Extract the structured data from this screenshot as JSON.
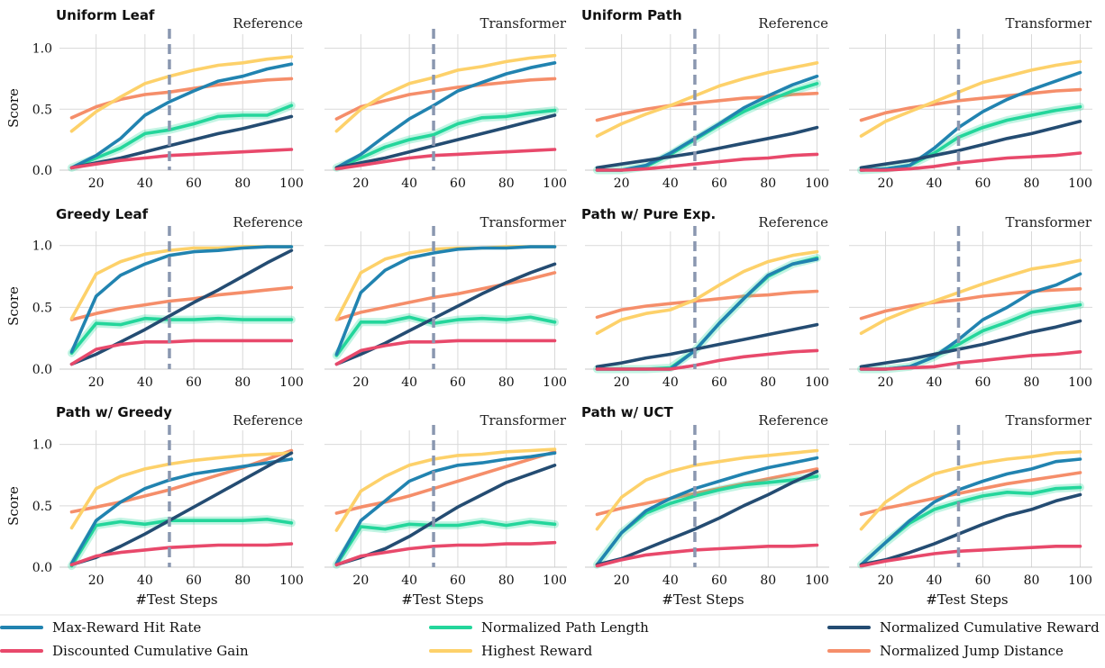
{
  "chart_data": {
    "type": "line",
    "x": [
      10,
      20,
      30,
      40,
      50,
      60,
      70,
      80,
      90,
      100
    ],
    "x_ticks": [
      "20",
      "40",
      "60",
      "80",
      "100"
    ],
    "y_ticks": [
      "0.0",
      "0.5",
      "1.0"
    ],
    "xlabel": "#Test Steps",
    "ylabel": "Score",
    "ylim": [
      0,
      1.1
    ],
    "xlim": [
      5,
      105
    ],
    "vline_x": 50,
    "grid": true,
    "legend_position": "bottom",
    "series_styles": [
      {
        "key": "hit",
        "name": "Max-Reward Hit Rate",
        "color": "#2183b0"
      },
      {
        "key": "dcg",
        "name": "Discounted Cumulative Gain",
        "color": "#e8496b"
      },
      {
        "key": "path",
        "name": "Normalized Path Length",
        "color": "#24d69b"
      },
      {
        "key": "high",
        "name": "Highest Reward",
        "color": "#fdd16a"
      },
      {
        "key": "cum",
        "name": "Normalized Cumulative Reward",
        "color": "#244c72"
      },
      {
        "key": "jump",
        "name": "Normalized Jump Distance",
        "color": "#f58e6a"
      }
    ],
    "panels": [
      {
        "row_title": "Uniform Leaf",
        "tag": "Reference",
        "series": {
          "hit": [
            0.02,
            0.12,
            0.26,
            0.45,
            0.56,
            0.65,
            0.73,
            0.77,
            0.83,
            0.87
          ],
          "dcg": [
            0.02,
            0.05,
            0.08,
            0.1,
            0.12,
            0.13,
            0.14,
            0.15,
            0.16,
            0.17
          ],
          "path": [
            0.02,
            0.1,
            0.18,
            0.3,
            0.33,
            0.38,
            0.44,
            0.45,
            0.45,
            0.53
          ],
          "high": [
            0.32,
            0.48,
            0.6,
            0.71,
            0.77,
            0.82,
            0.86,
            0.88,
            0.91,
            0.93
          ],
          "cum": [
            0.02,
            0.06,
            0.1,
            0.15,
            0.2,
            0.25,
            0.3,
            0.34,
            0.39,
            0.44
          ],
          "jump": [
            0.43,
            0.52,
            0.58,
            0.62,
            0.64,
            0.67,
            0.7,
            0.72,
            0.74,
            0.75
          ]
        }
      },
      {
        "row_title": "",
        "tag": "Transformer",
        "series": {
          "hit": [
            0.02,
            0.13,
            0.28,
            0.42,
            0.53,
            0.65,
            0.72,
            0.79,
            0.84,
            0.88
          ],
          "dcg": [
            0.01,
            0.04,
            0.07,
            0.1,
            0.12,
            0.13,
            0.14,
            0.15,
            0.16,
            0.17
          ],
          "path": [
            0.02,
            0.1,
            0.19,
            0.25,
            0.29,
            0.38,
            0.43,
            0.44,
            0.47,
            0.49
          ],
          "high": [
            0.32,
            0.5,
            0.62,
            0.71,
            0.76,
            0.82,
            0.85,
            0.89,
            0.92,
            0.94
          ],
          "cum": [
            0.02,
            0.06,
            0.1,
            0.15,
            0.2,
            0.25,
            0.3,
            0.35,
            0.4,
            0.45
          ],
          "jump": [
            0.42,
            0.52,
            0.57,
            0.62,
            0.65,
            0.68,
            0.7,
            0.72,
            0.74,
            0.75
          ]
        }
      },
      {
        "row_title": "Uniform Path",
        "tag": "Reference",
        "series": {
          "hit": [
            0.0,
            0.0,
            0.04,
            0.14,
            0.26,
            0.38,
            0.51,
            0.61,
            0.7,
            0.77
          ],
          "dcg": [
            0.0,
            0.0,
            0.01,
            0.03,
            0.05,
            0.07,
            0.09,
            0.1,
            0.12,
            0.13
          ],
          "path": [
            0.0,
            0.0,
            0.03,
            0.13,
            0.25,
            0.37,
            0.48,
            0.57,
            0.65,
            0.71
          ],
          "high": [
            0.28,
            0.38,
            0.46,
            0.53,
            0.61,
            0.69,
            0.75,
            0.8,
            0.84,
            0.88
          ],
          "cum": [
            0.02,
            0.05,
            0.08,
            0.11,
            0.14,
            0.18,
            0.22,
            0.26,
            0.3,
            0.35
          ],
          "jump": [
            0.41,
            0.46,
            0.5,
            0.53,
            0.55,
            0.57,
            0.59,
            0.6,
            0.62,
            0.63
          ]
        }
      },
      {
        "row_title": "",
        "tag": "Transformer",
        "series": {
          "hit": [
            0.0,
            0.01,
            0.04,
            0.18,
            0.35,
            0.48,
            0.58,
            0.66,
            0.73,
            0.8
          ],
          "dcg": [
            0.0,
            0.0,
            0.01,
            0.03,
            0.06,
            0.08,
            0.1,
            0.11,
            0.12,
            0.14
          ],
          "path": [
            0.0,
            0.01,
            0.04,
            0.14,
            0.27,
            0.35,
            0.41,
            0.45,
            0.49,
            0.52
          ],
          "high": [
            0.28,
            0.4,
            0.48,
            0.56,
            0.64,
            0.72,
            0.77,
            0.82,
            0.86,
            0.89
          ],
          "cum": [
            0.02,
            0.05,
            0.08,
            0.12,
            0.16,
            0.21,
            0.26,
            0.3,
            0.35,
            0.4
          ],
          "jump": [
            0.41,
            0.47,
            0.51,
            0.54,
            0.57,
            0.59,
            0.61,
            0.63,
            0.65,
            0.66
          ]
        }
      },
      {
        "row_title": "Greedy Leaf",
        "tag": "Reference",
        "series": {
          "hit": [
            0.14,
            0.59,
            0.76,
            0.85,
            0.92,
            0.95,
            0.96,
            0.98,
            0.99,
            0.99
          ],
          "dcg": [
            0.04,
            0.16,
            0.2,
            0.22,
            0.22,
            0.23,
            0.23,
            0.23,
            0.23,
            0.23
          ],
          "path": [
            0.13,
            0.37,
            0.36,
            0.41,
            0.4,
            0.4,
            0.41,
            0.4,
            0.4,
            0.4
          ],
          "high": [
            0.41,
            0.77,
            0.87,
            0.93,
            0.96,
            0.98,
            0.98,
            0.99,
            0.99,
            0.99
          ],
          "cum": [
            0.04,
            0.12,
            0.22,
            0.32,
            0.43,
            0.54,
            0.64,
            0.75,
            0.86,
            0.96
          ],
          "jump": [
            0.4,
            0.45,
            0.49,
            0.52,
            0.55,
            0.57,
            0.6,
            0.62,
            0.64,
            0.66
          ]
        }
      },
      {
        "row_title": "",
        "tag": "Transformer",
        "series": {
          "hit": [
            0.12,
            0.62,
            0.8,
            0.9,
            0.94,
            0.97,
            0.98,
            0.98,
            0.99,
            0.99
          ],
          "dcg": [
            0.04,
            0.15,
            0.19,
            0.22,
            0.22,
            0.23,
            0.23,
            0.23,
            0.23,
            0.23
          ],
          "path": [
            0.11,
            0.38,
            0.38,
            0.42,
            0.37,
            0.4,
            0.41,
            0.4,
            0.42,
            0.38
          ],
          "high": [
            0.4,
            0.78,
            0.89,
            0.94,
            0.97,
            0.98,
            0.98,
            0.99,
            0.99,
            0.99
          ],
          "cum": [
            0.04,
            0.12,
            0.21,
            0.31,
            0.41,
            0.51,
            0.61,
            0.7,
            0.78,
            0.85
          ],
          "jump": [
            0.4,
            0.46,
            0.5,
            0.54,
            0.58,
            0.61,
            0.65,
            0.69,
            0.73,
            0.78
          ]
        }
      },
      {
        "row_title": "Path w/ Pure Exp.",
        "tag": "Reference",
        "series": {
          "hit": [
            0.0,
            0.0,
            0.0,
            0.0,
            0.15,
            0.37,
            0.57,
            0.76,
            0.85,
            0.89
          ],
          "dcg": [
            0.0,
            0.0,
            0.0,
            0.0,
            0.03,
            0.07,
            0.1,
            0.12,
            0.14,
            0.15
          ],
          "path": [
            0.0,
            0.0,
            0.0,
            0.01,
            0.15,
            0.37,
            0.57,
            0.75,
            0.85,
            0.9
          ],
          "high": [
            0.29,
            0.4,
            0.45,
            0.48,
            0.56,
            0.68,
            0.79,
            0.87,
            0.92,
            0.95
          ],
          "cum": [
            0.02,
            0.05,
            0.09,
            0.12,
            0.16,
            0.2,
            0.24,
            0.28,
            0.32,
            0.36
          ],
          "jump": [
            0.42,
            0.48,
            0.51,
            0.53,
            0.55,
            0.57,
            0.59,
            0.6,
            0.62,
            0.63
          ]
        }
      },
      {
        "row_title": "",
        "tag": "Transformer",
        "series": {
          "hit": [
            0.0,
            0.0,
            0.02,
            0.1,
            0.24,
            0.4,
            0.5,
            0.62,
            0.68,
            0.77
          ],
          "dcg": [
            0.0,
            0.0,
            0.01,
            0.02,
            0.05,
            0.07,
            0.09,
            0.11,
            0.12,
            0.14
          ],
          "path": [
            0.0,
            0.0,
            0.02,
            0.1,
            0.2,
            0.31,
            0.38,
            0.46,
            0.49,
            0.52
          ],
          "high": [
            0.29,
            0.4,
            0.48,
            0.55,
            0.62,
            0.69,
            0.75,
            0.81,
            0.84,
            0.88
          ],
          "cum": [
            0.02,
            0.05,
            0.08,
            0.12,
            0.16,
            0.2,
            0.25,
            0.3,
            0.34,
            0.39
          ],
          "jump": [
            0.41,
            0.47,
            0.51,
            0.54,
            0.56,
            0.59,
            0.61,
            0.63,
            0.64,
            0.65
          ]
        }
      },
      {
        "row_title": "Path w/ Greedy",
        "tag": "Reference",
        "series": {
          "hit": [
            0.03,
            0.38,
            0.53,
            0.64,
            0.71,
            0.76,
            0.79,
            0.82,
            0.85,
            0.88
          ],
          "dcg": [
            0.02,
            0.09,
            0.12,
            0.14,
            0.16,
            0.17,
            0.18,
            0.18,
            0.18,
            0.19
          ],
          "path": [
            0.01,
            0.34,
            0.37,
            0.35,
            0.38,
            0.38,
            0.38,
            0.38,
            0.39,
            0.36
          ],
          "high": [
            0.32,
            0.64,
            0.74,
            0.8,
            0.84,
            0.87,
            0.89,
            0.91,
            0.92,
            0.93
          ],
          "cum": [
            0.02,
            0.08,
            0.17,
            0.27,
            0.38,
            0.49,
            0.6,
            0.71,
            0.82,
            0.93
          ],
          "jump": [
            0.45,
            0.49,
            0.53,
            0.58,
            0.63,
            0.69,
            0.75,
            0.81,
            0.88,
            0.95
          ]
        }
      },
      {
        "row_title": "",
        "tag": "Transformer",
        "series": {
          "hit": [
            0.03,
            0.38,
            0.54,
            0.7,
            0.78,
            0.83,
            0.85,
            0.88,
            0.9,
            0.93
          ],
          "dcg": [
            0.02,
            0.09,
            0.12,
            0.15,
            0.17,
            0.18,
            0.18,
            0.19,
            0.19,
            0.2
          ],
          "path": [
            0.02,
            0.33,
            0.31,
            0.35,
            0.34,
            0.34,
            0.37,
            0.34,
            0.37,
            0.35
          ],
          "high": [
            0.3,
            0.62,
            0.74,
            0.83,
            0.88,
            0.91,
            0.92,
            0.94,
            0.95,
            0.96
          ],
          "cum": [
            0.02,
            0.08,
            0.15,
            0.25,
            0.37,
            0.49,
            0.59,
            0.69,
            0.76,
            0.83
          ],
          "jump": [
            0.44,
            0.49,
            0.53,
            0.58,
            0.64,
            0.7,
            0.76,
            0.82,
            0.88,
            0.94
          ]
        }
      },
      {
        "row_title": "Path w/ UCT",
        "tag": "Reference",
        "series": {
          "hit": [
            0.02,
            0.28,
            0.46,
            0.56,
            0.64,
            0.7,
            0.76,
            0.81,
            0.85,
            0.89
          ],
          "dcg": [
            0.01,
            0.06,
            0.1,
            0.12,
            0.14,
            0.15,
            0.16,
            0.17,
            0.17,
            0.18
          ],
          "path": [
            0.02,
            0.28,
            0.44,
            0.52,
            0.58,
            0.63,
            0.67,
            0.69,
            0.71,
            0.74
          ],
          "high": [
            0.31,
            0.57,
            0.71,
            0.78,
            0.83,
            0.86,
            0.89,
            0.91,
            0.93,
            0.95
          ],
          "cum": [
            0.02,
            0.07,
            0.15,
            0.23,
            0.31,
            0.4,
            0.5,
            0.59,
            0.69,
            0.78
          ],
          "jump": [
            0.43,
            0.48,
            0.52,
            0.56,
            0.6,
            0.64,
            0.68,
            0.72,
            0.76,
            0.8
          ]
        }
      },
      {
        "row_title": "",
        "tag": "Transformer",
        "series": {
          "hit": [
            0.02,
            0.2,
            0.38,
            0.53,
            0.63,
            0.7,
            0.76,
            0.8,
            0.86,
            0.88
          ],
          "dcg": [
            0.01,
            0.05,
            0.08,
            0.11,
            0.13,
            0.14,
            0.15,
            0.16,
            0.17,
            0.17
          ],
          "path": [
            0.02,
            0.2,
            0.36,
            0.47,
            0.53,
            0.58,
            0.61,
            0.6,
            0.64,
            0.65
          ],
          "high": [
            0.31,
            0.53,
            0.66,
            0.76,
            0.81,
            0.85,
            0.88,
            0.9,
            0.93,
            0.94
          ],
          "cum": [
            0.02,
            0.06,
            0.12,
            0.19,
            0.27,
            0.35,
            0.42,
            0.47,
            0.54,
            0.59
          ],
          "jump": [
            0.43,
            0.48,
            0.52,
            0.56,
            0.6,
            0.64,
            0.68,
            0.71,
            0.74,
            0.77
          ]
        }
      }
    ]
  }
}
